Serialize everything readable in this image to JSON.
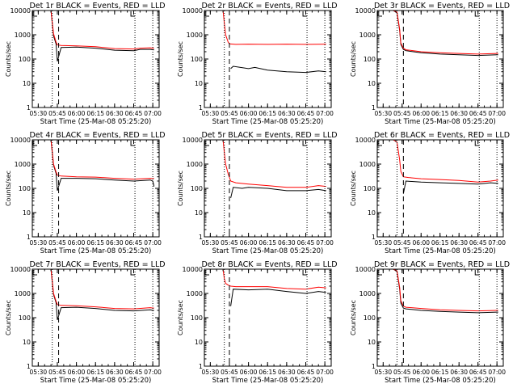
{
  "page": {
    "background": "#ffffff",
    "colors": {
      "events": "#000000",
      "lld": "#ff0000",
      "axes": "#000000"
    }
  },
  "chart_data": [
    {
      "type": "line",
      "title": "Det 1r BLACK = Events, RED = LLD",
      "xlabel": "Start Time (25-Mar-08 05:25:20)",
      "ylabel": "Counts/sec",
      "x_ticks": [
        "05:30",
        "05:45",
        "06:00",
        "06:15",
        "06:30",
        "06:45",
        "07:00"
      ],
      "y_ticks": [
        "1",
        "10",
        "100",
        "1000",
        "10000"
      ],
      "xlim": [
        "05:25:20",
        "07:05"
      ],
      "ylim": [
        1,
        10000
      ],
      "yscale": "log",
      "dashed_marker": "05:46",
      "dotted_markers": [
        "05:41",
        "06:46",
        "07:00"
      ],
      "series": [
        {
          "name": "Events",
          "color": "#000000",
          "x": [
            "05:26",
            "05:38",
            "05:40",
            "05:41",
            "05:42",
            "05:44",
            "05:45",
            "05:48",
            "06:00",
            "06:15",
            "06:30",
            "06:45",
            "06:50",
            "06:58",
            "07:00",
            "07:01"
          ],
          "values": [
            10000,
            10000,
            10000,
            3000,
            900,
            420,
            80,
            300,
            310,
            280,
            230,
            220,
            250,
            250,
            240,
            240
          ]
        },
        {
          "name": "LLD",
          "color": "#ff0000",
          "x": [
            "05:26",
            "05:38",
            "05:40",
            "05:41",
            "05:42",
            "05:44",
            "05:45",
            "05:48",
            "06:00",
            "06:15",
            "06:30",
            "06:45",
            "06:50",
            "06:58",
            "07:00",
            "07:01"
          ],
          "values": [
            10000,
            10000,
            10000,
            3200,
            1100,
            500,
            380,
            360,
            350,
            320,
            270,
            260,
            280,
            290,
            280,
            280
          ]
        }
      ]
    },
    {
      "type": "line",
      "title": "Det 2r BLACK = Events, RED = LLD",
      "xlabel": "Start Time (25-Mar-08 05:25:20)",
      "ylabel": "Counts/sec",
      "x_ticks": [
        "05:30",
        "05:45",
        "06:00",
        "06:15",
        "06:30",
        "06:45",
        "07:00"
      ],
      "y_ticks": [
        "1",
        "10",
        "100",
        "1000",
        "10000"
      ],
      "xlim": [
        "05:25:20",
        "07:05"
      ],
      "ylim": [
        1,
        10000
      ],
      "yscale": "log",
      "dashed_marker": "05:45",
      "dotted_markers": [
        "05:41",
        "06:46",
        "07:00"
      ],
      "series": [
        {
          "name": "Events",
          "color": "#000000",
          "x": [
            "05:46",
            "05:48",
            "06:00",
            "06:05",
            "06:15",
            "06:30",
            "06:45",
            "06:55",
            "07:01"
          ],
          "values": [
            40,
            50,
            40,
            45,
            35,
            30,
            28,
            32,
            30
          ]
        },
        {
          "name": "LLD",
          "color": "#ff0000",
          "x": [
            "05:26",
            "05:38",
            "05:40",
            "05:41",
            "05:42",
            "05:44",
            "05:45",
            "05:50",
            "06:00",
            "06:15",
            "06:30",
            "06:45",
            "07:01"
          ],
          "values": [
            10000,
            10000,
            10000,
            3000,
            1000,
            500,
            420,
            400,
            410,
            400,
            410,
            400,
            410
          ]
        }
      ]
    },
    {
      "type": "line",
      "title": "Det 3r BLACK = Events, RED = LLD",
      "xlabel": "Start Time (25-Mar-08 05:25:20)",
      "ylabel": "Counts/sec",
      "x_ticks": [
        "05:30",
        "05:45",
        "06:00",
        "06:15",
        "06:30",
        "06:45",
        "07:00"
      ],
      "y_ticks": [
        "1",
        "10",
        "100",
        "1000",
        "10000"
      ],
      "xlim": [
        "05:25:20",
        "07:05"
      ],
      "ylim": [
        1,
        10000
      ],
      "yscale": "log",
      "dashed_marker": "05:46",
      "dotted_markers": [
        "05:41",
        "06:46",
        "07:00"
      ],
      "series": [
        {
          "name": "Events",
          "color": "#000000",
          "x": [
            "05:26",
            "05:38",
            "05:41",
            "05:43",
            "05:44",
            "05:46",
            "05:48",
            "06:00",
            "06:15",
            "06:30",
            "06:45",
            "07:00",
            "07:01"
          ],
          "values": [
            10000,
            10000,
            8000,
            1500,
            400,
            250,
            220,
            180,
            160,
            150,
            140,
            150,
            150
          ]
        },
        {
          "name": "LLD",
          "color": "#ff0000",
          "x": [
            "05:26",
            "05:38",
            "05:41",
            "05:43",
            "05:44",
            "05:46",
            "05:48",
            "06:00",
            "06:15",
            "06:30",
            "06:45",
            "07:00",
            "07:01"
          ],
          "values": [
            10000,
            10000,
            8500,
            1700,
            450,
            280,
            240,
            200,
            180,
            170,
            160,
            170,
            170
          ]
        }
      ]
    },
    {
      "type": "line",
      "title": "Det 4r BLACK = Events, RED = LLD",
      "xlabel": "Start Time (25-Mar-08 05:25:20)",
      "ylabel": "Counts/sec",
      "x_ticks": [
        "05:30",
        "05:45",
        "06:00",
        "06:15",
        "06:30",
        "06:45",
        "07:00"
      ],
      "y_ticks": [
        "1",
        "10",
        "100",
        "1000",
        "10000"
      ],
      "xlim": [
        "05:25:20",
        "07:05"
      ],
      "ylim": [
        1,
        10000
      ],
      "yscale": "log",
      "dashed_marker": "05:46",
      "dotted_markers": [
        "05:41",
        "06:46",
        "07:00"
      ],
      "series": [
        {
          "name": "Events",
          "color": "#000000",
          "x": [
            "05:26",
            "05:38",
            "05:40",
            "05:41",
            "05:42",
            "05:44",
            "05:45",
            "05:48",
            "06:00",
            "06:15",
            "06:30",
            "06:45",
            "06:58",
            "07:00",
            "07:01"
          ],
          "values": [
            10000,
            10000,
            10000,
            3000,
            900,
            420,
            80,
            260,
            260,
            250,
            220,
            200,
            220,
            200,
            120
          ]
        },
        {
          "name": "LLD",
          "color": "#ff0000",
          "x": [
            "05:26",
            "05:38",
            "05:40",
            "05:41",
            "05:42",
            "05:44",
            "05:45",
            "05:48",
            "06:00",
            "06:15",
            "06:30",
            "06:45",
            "06:58",
            "07:00",
            "07:01"
          ],
          "values": [
            10000,
            10000,
            10000,
            3200,
            1000,
            480,
            350,
            320,
            300,
            290,
            260,
            240,
            260,
            250,
            260
          ]
        }
      ]
    },
    {
      "type": "line",
      "title": "Det 5r BLACK = Events, RED = LLD",
      "xlabel": "Start Time (25-Mar-08 05:25:20)",
      "ylabel": "Counts/sec",
      "x_ticks": [
        "05:30",
        "05:45",
        "06:00",
        "06:15",
        "06:30",
        "06:45",
        "07:00"
      ],
      "y_ticks": [
        "1",
        "10",
        "100",
        "1000",
        "10000"
      ],
      "xlim": [
        "05:25:20",
        "07:05"
      ],
      "ylim": [
        1,
        10000
      ],
      "yscale": "log",
      "dashed_marker": "05:45",
      "dotted_markers": [
        "05:41",
        "06:46",
        "07:00"
      ],
      "series": [
        {
          "name": "Events",
          "color": "#000000",
          "x": [
            "05:46",
            "05:48",
            "05:55",
            "06:00",
            "06:15",
            "06:30",
            "06:45",
            "06:55",
            "07:01"
          ],
          "values": [
            40,
            110,
            100,
            110,
            100,
            80,
            80,
            90,
            80
          ]
        },
        {
          "name": "LLD",
          "color": "#ff0000",
          "x": [
            "05:26",
            "05:38",
            "05:40",
            "05:41",
            "05:42",
            "05:44",
            "05:46",
            "05:50",
            "06:00",
            "06:15",
            "06:30",
            "06:45",
            "06:55",
            "07:01"
          ],
          "values": [
            10000,
            10000,
            10000,
            3000,
            1000,
            400,
            200,
            170,
            150,
            130,
            110,
            110,
            130,
            120
          ]
        }
      ]
    },
    {
      "type": "line",
      "title": "Det 6r BLACK = Events, RED = LLD",
      "xlabel": "Start Time (25-Mar-08 05:25:20)",
      "ylabel": "Counts/sec",
      "x_ticks": [
        "05:30",
        "05:45",
        "06:00",
        "06:15",
        "06:30",
        "06:45",
        "07:00"
      ],
      "y_ticks": [
        "1",
        "10",
        "100",
        "1000",
        "10000"
      ],
      "xlim": [
        "05:25:20",
        "07:05"
      ],
      "ylim": [
        1,
        10000
      ],
      "yscale": "log",
      "dashed_marker": "05:46",
      "dotted_markers": [
        "05:41",
        "06:46",
        "07:00"
      ],
      "series": [
        {
          "name": "Events",
          "color": "#000000",
          "x": [
            "05:46",
            "05:48",
            "06:00",
            "06:15",
            "06:30",
            "06:45",
            "06:55",
            "07:01"
          ],
          "values": [
            60,
            200,
            180,
            170,
            160,
            150,
            170,
            160
          ]
        },
        {
          "name": "LLD",
          "color": "#ff0000",
          "x": [
            "05:26",
            "05:38",
            "05:41",
            "05:43",
            "05:44",
            "05:46",
            "05:50",
            "06:00",
            "06:15",
            "06:30",
            "06:45",
            "06:55",
            "07:01"
          ],
          "values": [
            10000,
            10000,
            8000,
            1500,
            500,
            300,
            280,
            250,
            230,
            210,
            180,
            200,
            220
          ]
        }
      ]
    },
    {
      "type": "line",
      "title": "Det 7r BLACK = Events, RED = LLD",
      "xlabel": "Start Time (25-Mar-08 05:25:20)",
      "ylabel": "Counts/sec",
      "x_ticks": [
        "05:30",
        "05:45",
        "06:00",
        "06:15",
        "06:30",
        "06:45",
        "07:00"
      ],
      "y_ticks": [
        "1",
        "10",
        "100",
        "1000",
        "10000"
      ],
      "xlim": [
        "05:25:20",
        "07:05"
      ],
      "ylim": [
        1,
        10000
      ],
      "yscale": "log",
      "dashed_marker": "05:46",
      "dotted_markers": [
        "05:41",
        "06:46",
        "07:00"
      ],
      "series": [
        {
          "name": "Events",
          "color": "#000000",
          "x": [
            "05:26",
            "05:38",
            "05:40",
            "05:41",
            "05:42",
            "05:44",
            "05:45",
            "05:48",
            "06:00",
            "06:15",
            "06:30",
            "06:45",
            "06:58",
            "07:00",
            "07:01"
          ],
          "values": [
            10000,
            10000,
            10000,
            3000,
            900,
            420,
            80,
            260,
            270,
            240,
            200,
            190,
            210,
            200,
            200
          ]
        },
        {
          "name": "LLD",
          "color": "#ff0000",
          "x": [
            "05:26",
            "05:38",
            "05:40",
            "05:41",
            "05:42",
            "05:44",
            "05:45",
            "05:48",
            "06:00",
            "06:15",
            "06:30",
            "06:45",
            "06:58",
            "07:00",
            "07:01"
          ],
          "values": [
            10000,
            10000,
            10000,
            3200,
            1000,
            480,
            350,
            320,
            310,
            280,
            240,
            230,
            260,
            250,
            250
          ]
        }
      ]
    },
    {
      "type": "line",
      "title": "Det 8r BLACK = Events, RED = LLD",
      "xlabel": "Start Time (25-Mar-08 05:25:20)",
      "ylabel": "Counts/sec",
      "x_ticks": [
        "05:30",
        "05:45",
        "06:00",
        "06:15",
        "06:30",
        "06:45",
        "07:00"
      ],
      "y_ticks": [
        "1",
        "10",
        "100",
        "1000",
        "10000"
      ],
      "xlim": [
        "05:25:20",
        "07:05"
      ],
      "ylim": [
        1,
        10000
      ],
      "yscale": "log",
      "dashed_marker": "05:45",
      "dotted_markers": [
        "05:41",
        "06:46",
        "07:00"
      ],
      "series": [
        {
          "name": "Events",
          "color": "#000000",
          "x": [
            "05:46",
            "05:48",
            "06:00",
            "06:15",
            "06:30",
            "06:45",
            "06:55",
            "07:01"
          ],
          "values": [
            300,
            1500,
            1400,
            1500,
            1200,
            1000,
            1200,
            1100
          ]
        },
        {
          "name": "LLD",
          "color": "#ff0000",
          "x": [
            "05:26",
            "05:38",
            "05:40",
            "05:41",
            "05:42",
            "05:44",
            "05:46",
            "05:50",
            "06:00",
            "06:15",
            "06:30",
            "06:45",
            "06:55",
            "07:01"
          ],
          "values": [
            10000,
            10000,
            10000,
            4000,
            2600,
            2200,
            2000,
            1900,
            1900,
            1900,
            1600,
            1500,
            1800,
            1700
          ]
        }
      ]
    },
    {
      "type": "line",
      "title": "Det 9r BLACK = Events, RED = LLD",
      "xlabel": "Start Time (25-Mar-08 05:25:20)",
      "ylabel": "Counts/sec",
      "x_ticks": [
        "05:30",
        "05:45",
        "06:00",
        "06:15",
        "06:30",
        "06:45",
        "07:00"
      ],
      "y_ticks": [
        "1",
        "10",
        "100",
        "1000",
        "10000"
      ],
      "xlim": [
        "05:25:20",
        "07:05"
      ],
      "ylim": [
        1,
        10000
      ],
      "yscale": "log",
      "dashed_marker": "05:46",
      "dotted_markers": [
        "05:41",
        "06:46",
        "07:00"
      ],
      "series": [
        {
          "name": "Events",
          "color": "#000000",
          "x": [
            "05:26",
            "05:38",
            "05:41",
            "05:43",
            "05:44",
            "05:46",
            "05:48",
            "06:00",
            "06:15",
            "06:30",
            "06:45",
            "07:00",
            "07:01"
          ],
          "values": [
            10000,
            10000,
            8000,
            1500,
            400,
            250,
            230,
            200,
            180,
            170,
            160,
            170,
            170
          ]
        },
        {
          "name": "LLD",
          "color": "#ff0000",
          "x": [
            "05:26",
            "05:38",
            "05:41",
            "05:43",
            "05:44",
            "05:46",
            "05:48",
            "06:00",
            "06:15",
            "06:30",
            "06:45",
            "07:00",
            "07:01"
          ],
          "values": [
            10000,
            10000,
            8500,
            1800,
            500,
            300,
            270,
            240,
            210,
            200,
            190,
            200,
            200
          ]
        }
      ]
    }
  ]
}
